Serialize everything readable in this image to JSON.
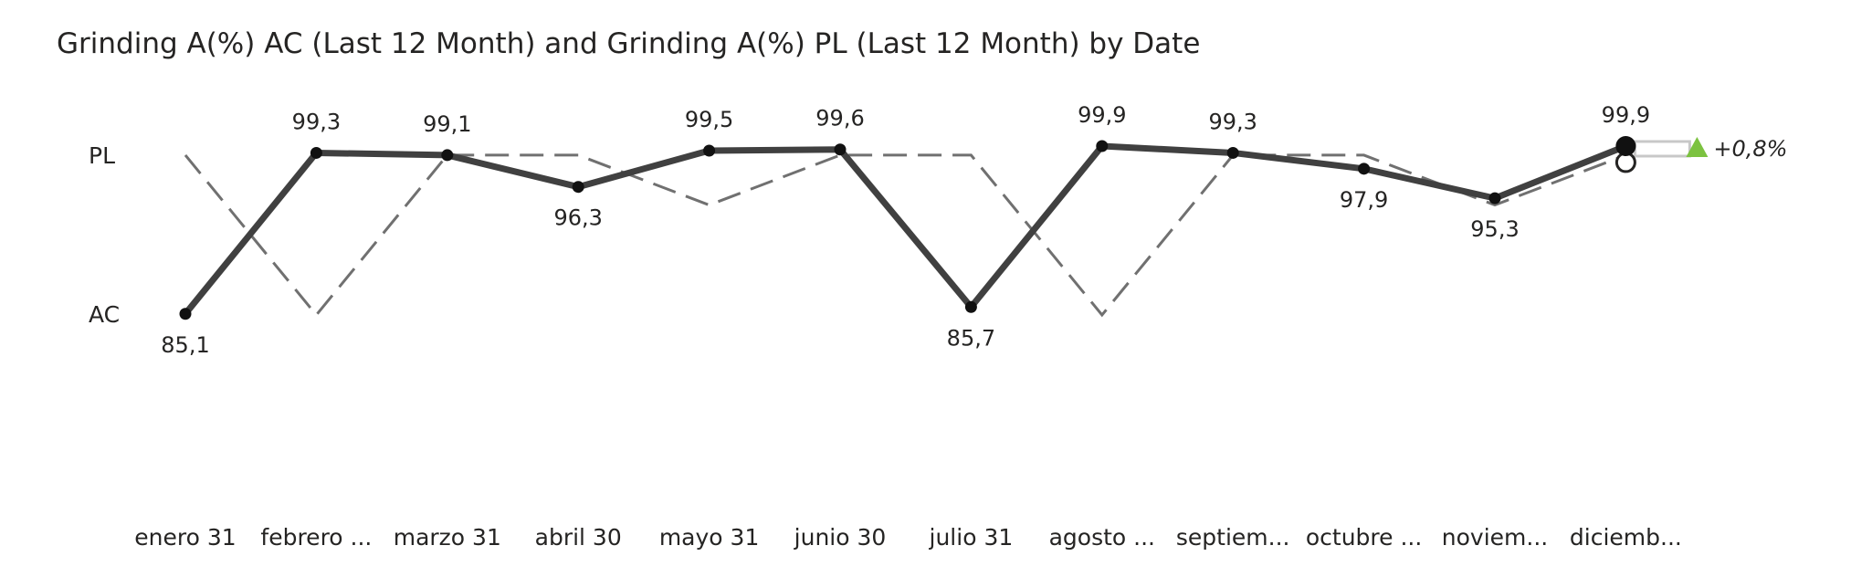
{
  "chart_data": {
    "type": "line",
    "title": "Grinding A(%) AC (Last 12 Month) and Grinding A(%) PL (Last 12 Month) by Date",
    "categories": [
      "enero 31",
      "febrero ...",
      "marzo 31",
      "abril 30",
      "mayo 31",
      "junio 30",
      "julio 31",
      "agosto ...",
      "septiem...",
      "octubre ...",
      "noviem...",
      "diciemb..."
    ],
    "row_labels": [
      "PL",
      "AC"
    ],
    "series": [
      {
        "name": "AC",
        "values": [
          85.1,
          99.3,
          99.1,
          96.3,
          99.5,
          99.6,
          85.7,
          99.9,
          99.3,
          97.9,
          95.3,
          99.9
        ],
        "value_labels": [
          "85,1",
          "99,3",
          "99,1",
          "96,3",
          "99,5",
          "99,6",
          "85,7",
          "99,9",
          "99,3",
          "97,9",
          "95,3",
          "99,9"
        ],
        "label_position": [
          "below",
          "above",
          "above",
          "below",
          "above",
          "above",
          "below",
          "above",
          "above",
          "below",
          "below",
          "above"
        ],
        "style": "solid",
        "color": "#404040"
      },
      {
        "name": "PL",
        "values": [
          99.1,
          85.0,
          99.1,
          99.1,
          94.7,
          99.1,
          99.1,
          85.0,
          99.1,
          99.1,
          94.7,
          99.1
        ],
        "style": "dashed",
        "color": "#707070"
      }
    ],
    "ylim": [
      80,
      102
    ],
    "grid": false,
    "delta": {
      "label": "+0,8%",
      "value": 0.8,
      "direction": "up",
      "color": "#7cc240"
    }
  }
}
